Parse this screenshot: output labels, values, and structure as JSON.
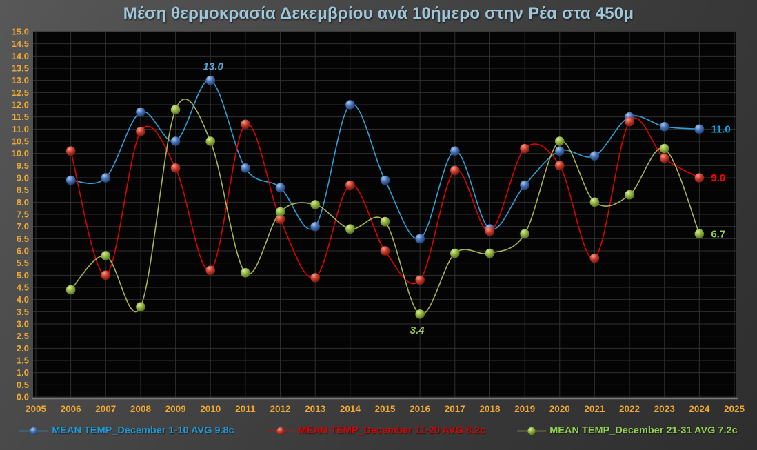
{
  "title": "Μέση θερμοκρασία Δεκεμβρίου ανά 10ήμερο στην Ρέα στα 450μ",
  "title_color": "#9FC6D8",
  "chart_data": {
    "type": "line",
    "title": "Μέση θερμοκρασία Δεκεμβρίου ανά 10ήμερο στην Ρέα στα 450μ",
    "x": [
      2006,
      2007,
      2008,
      2009,
      2010,
      2011,
      2012,
      2013,
      2014,
      2015,
      2016,
      2017,
      2018,
      2019,
      2020,
      2021,
      2022,
      2023,
      2024
    ],
    "series": [
      {
        "id": "dec-1-10",
        "name": "MEAN TEMP_December 1-10 AVG 9.8c",
        "avg": 9.8,
        "values": [
          8.9,
          9.0,
          11.7,
          10.5,
          13.0,
          9.4,
          8.6,
          7.0,
          12.0,
          8.9,
          6.5,
          10.1,
          6.9,
          8.7,
          10.1,
          9.9,
          11.5,
          11.1,
          11.0
        ],
        "line_color": "#2EA0D8",
        "marker": {
          "light": "#AECBF0",
          "base": "#4470B4",
          "dark": "#1E3A69"
        }
      },
      {
        "id": "dec-11-20",
        "name": "MEAN TEMP_December 11-20 AVG 8.2c",
        "avg": 8.2,
        "values": [
          10.1,
          5.0,
          10.9,
          9.4,
          5.2,
          11.2,
          7.3,
          4.9,
          8.7,
          6.0,
          4.8,
          9.3,
          6.8,
          10.2,
          9.5,
          5.7,
          11.3,
          9.8,
          9.0
        ],
        "line_color": "#E00000",
        "marker": {
          "light": "#F4A08F",
          "base": "#C63A2B",
          "dark": "#701409"
        }
      },
      {
        "id": "dec-21-31",
        "name": "MEAN TEMP_December 21-31 AVG 7.2c",
        "avg": 7.2,
        "values": [
          4.4,
          5.8,
          3.7,
          11.8,
          10.5,
          5.1,
          7.6,
          7.9,
          6.9,
          7.2,
          3.4,
          5.9,
          5.9,
          6.7,
          10.5,
          8.0,
          8.3,
          10.2,
          6.7
        ],
        "line_color": "#A9B44D",
        "marker": {
          "light": "#DCEB9E",
          "base": "#8FB23C",
          "dark": "#4F681C"
        }
      }
    ],
    "annotations": [
      {
        "series": 0,
        "year": 2010,
        "text": "13.0",
        "style": "italic",
        "placement": "above",
        "color": "#4FA8D8"
      },
      {
        "series": 2,
        "year": 2016,
        "text": "3.4",
        "style": "italic",
        "placement": "below",
        "color": "#97C34F"
      },
      {
        "series": 0,
        "year": 2024,
        "text": "11.0",
        "style": "bold",
        "placement": "right",
        "color": "#00AEEF"
      },
      {
        "series": 1,
        "year": 2024,
        "text": "9.0",
        "style": "bold",
        "placement": "right",
        "color": "#FF0000"
      },
      {
        "series": 2,
        "year": 2024,
        "text": "6.7",
        "style": "bold",
        "placement": "right",
        "color": "#92D050"
      }
    ],
    "xlim": [
      2005,
      2025
    ],
    "x_tick_step": 1,
    "ylim": [
      0.0,
      15.0
    ],
    "y_tick_step": 0.5,
    "y_tick_format_decimals": 1,
    "tick_color": "#EDA838",
    "grid": true,
    "grid_color": "#2F2F2F",
    "plot_bg": "#040404",
    "axis_line_color": "#7A7A7A",
    "xlabel": "",
    "ylabel": "",
    "legend_position": "bottom"
  },
  "legend": {
    "items": [
      {
        "label": "MEAN TEMP_December 1-10 AVG 9.8c",
        "color": "#1E9AD6"
      },
      {
        "label": "MEAN TEMP_December 11-20 AVG 8.2c",
        "color": "#E00000"
      },
      {
        "label": "MEAN TEMP_December 21-31 AVG 7.2c",
        "color": "#92D050"
      }
    ]
  }
}
